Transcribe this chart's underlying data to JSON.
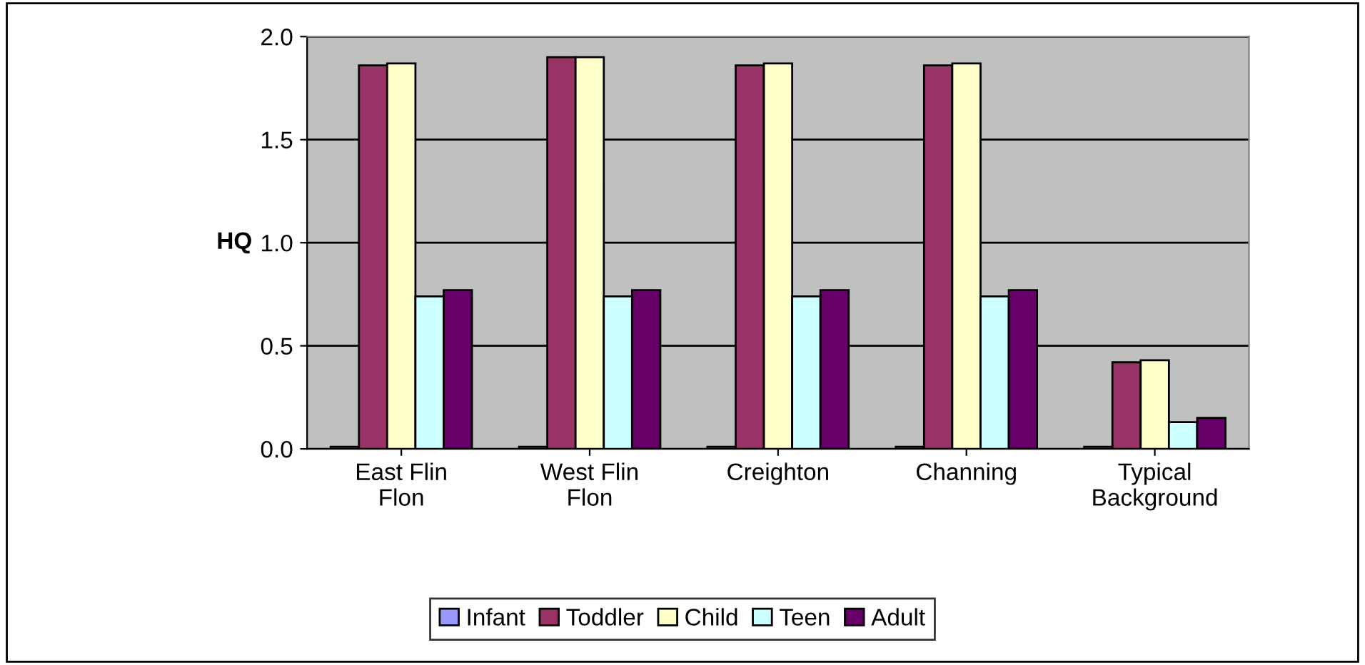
{
  "chart_data": {
    "type": "bar",
    "ylabel": "HQ",
    "categories": [
      "East Flin Flon",
      "West Flin Flon",
      "Creighton",
      "Channing",
      "Typical Background"
    ],
    "series": [
      {
        "name": "Infant",
        "color": "#9999ff",
        "values": [
          0.01,
          0.01,
          0.01,
          0.01,
          0.01
        ]
      },
      {
        "name": "Toddler",
        "color": "#993366",
        "values": [
          1.86,
          1.9,
          1.86,
          1.86,
          0.42
        ]
      },
      {
        "name": "Child",
        "color": "#ffffcc",
        "values": [
          1.87,
          1.9,
          1.87,
          1.87,
          0.43
        ]
      },
      {
        "name": "Teen",
        "color": "#ccffff",
        "values": [
          0.74,
          0.74,
          0.74,
          0.74,
          0.13
        ]
      },
      {
        "name": "Adult",
        "color": "#660066",
        "values": [
          0.77,
          0.77,
          0.77,
          0.77,
          0.15
        ]
      }
    ],
    "ylim": [
      0,
      2.0
    ],
    "yticks": [
      {
        "value": 0,
        "label": "0.0"
      },
      {
        "value": 0.5,
        "label": "0.5"
      },
      {
        "value": 1.0,
        "label": "1.0"
      },
      {
        "value": 1.5,
        "label": "1.5"
      },
      {
        "value": 2.0,
        "label": "2.0"
      }
    ],
    "grid": "y",
    "legend": "bottom"
  }
}
